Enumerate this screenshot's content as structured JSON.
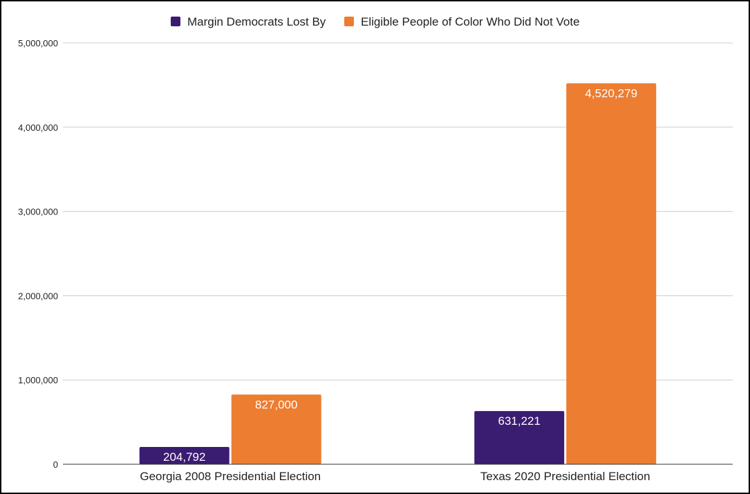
{
  "chart_data": {
    "type": "bar",
    "title": "",
    "xlabel": "",
    "ylabel": "",
    "categories": [
      "Georgia 2008 Presidential Election",
      "Texas 2020 Presidential Election"
    ],
    "series": [
      {
        "name": "Margin Democrats Lost By",
        "color": "#3a1c71",
        "values": [
          204792,
          631221
        ],
        "labels": [
          "204,792",
          "631,221"
        ]
      },
      {
        "name": "Eligible People of Color Who Did Not Vote",
        "color": "#ed7d31",
        "values": [
          827000,
          4520279
        ],
        "labels": [
          "827,000",
          "4,520,279"
        ]
      }
    ],
    "ylim": [
      0,
      5000000
    ],
    "y_ticks": [
      0,
      1000000,
      2000000,
      3000000,
      4000000,
      5000000
    ],
    "y_tick_labels": [
      "0",
      "1,000,000",
      "2,000,000",
      "3,000,000",
      "4,000,000",
      "5,000,000"
    ],
    "grid": true,
    "legend_position": "top-center"
  }
}
